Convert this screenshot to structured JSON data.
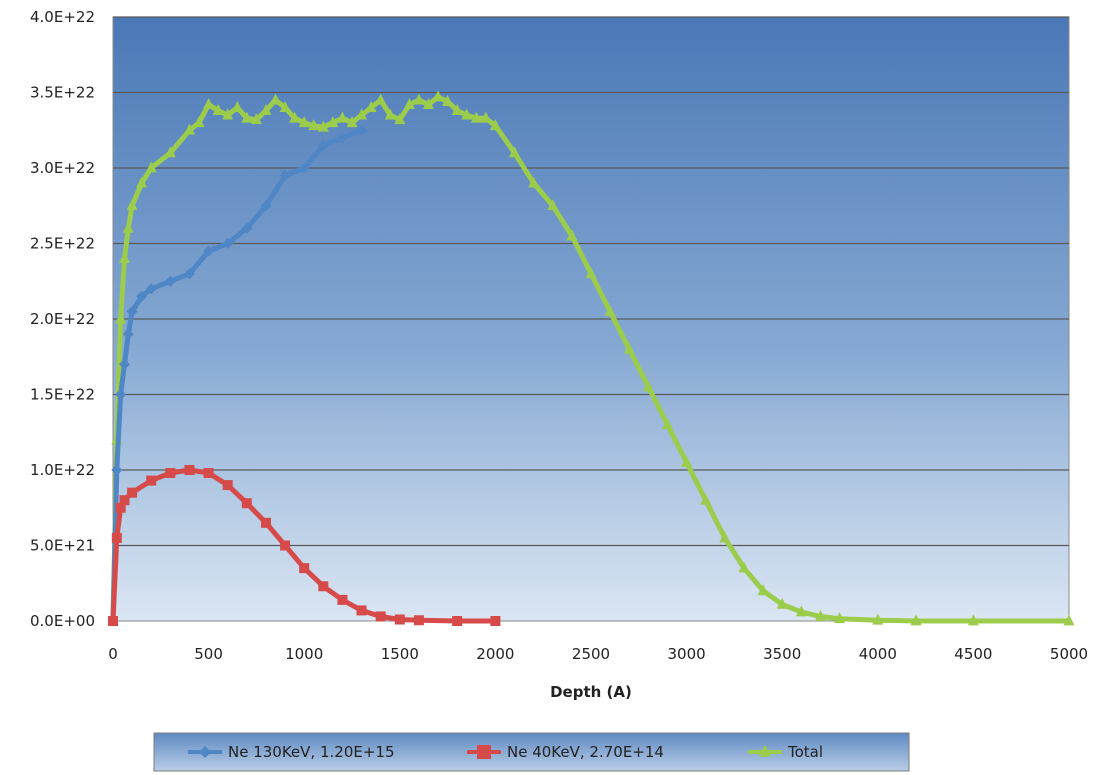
{
  "chart_data": {
    "type": "line",
    "title": "",
    "xlabel": "Depth (A)",
    "ylabel": "",
    "xlim": [
      0,
      5000
    ],
    "ylim": [
      0,
      4e+22
    ],
    "x_ticks": [
      0,
      500,
      1000,
      1500,
      2000,
      2500,
      3000,
      3500,
      4000,
      4500,
      5000
    ],
    "x_tick_labels": [
      "0",
      "500",
      "1000",
      "1500",
      "2000",
      "2500",
      "3000",
      "3500",
      "4000",
      "4500",
      "5000"
    ],
    "y_ticks": [
      0,
      5e+21,
      1e+22,
      1.5e+22,
      2e+22,
      2.5e+22,
      3e+22,
      3.5e+22,
      4e+22
    ],
    "y_tick_labels": [
      "0.0E+00",
      "5.0E+21",
      "1.0E+22",
      "1.5E+22",
      "2.0E+22",
      "2.5E+22",
      "3.0E+22",
      "3.5E+22",
      "4.0E+22"
    ],
    "grid": true,
    "legend_position": "bottom",
    "series": [
      {
        "name": "Ne 130KeV, 1.20E+15",
        "color": "#4f86c6",
        "marker": "diamond",
        "x": [
          0,
          20,
          40,
          60,
          80,
          100,
          150,
          200,
          300,
          400,
          500,
          600,
          700,
          800,
          900,
          1000,
          1100,
          1200,
          1300
        ],
        "y": [
          0,
          1e+22,
          1.5e+22,
          1.7e+22,
          1.9e+22,
          2.05e+22,
          2.15e+22,
          2.2e+22,
          2.25e+22,
          2.3e+22,
          2.45e+22,
          2.5e+22,
          2.6e+22,
          2.75e+22,
          2.95e+22,
          3e+22,
          3.15e+22,
          3.2e+22,
          3.25e+22
        ]
      },
      {
        "name": "Ne 40KeV, 2.70E+14",
        "color": "#d64a4a",
        "marker": "square",
        "x": [
          0,
          20,
          40,
          60,
          100,
          200,
          300,
          400,
          500,
          600,
          700,
          800,
          900,
          1000,
          1100,
          1200,
          1300,
          1400,
          1500,
          1600,
          1800,
          2000
        ],
        "y": [
          0,
          5.5e+21,
          7.5e+21,
          8e+21,
          8.5e+21,
          9.3e+21,
          9.8e+21,
          1e+22,
          9.8e+21,
          9e+21,
          7.8e+21,
          6.5e+21,
          5e+21,
          3.5e+21,
          2.3e+21,
          1.4e+21,
          7e+20,
          3e+20,
          1e+20,
          5e+19,
          0,
          0
        ]
      },
      {
        "name": "Total",
        "color": "#9ccc4c",
        "marker": "triangle",
        "x": [
          0,
          20,
          40,
          60,
          80,
          100,
          150,
          200,
          300,
          400,
          450,
          500,
          550,
          600,
          650,
          700,
          750,
          800,
          850,
          900,
          950,
          1000,
          1050,
          1100,
          1150,
          1200,
          1250,
          1300,
          1350,
          1400,
          1450,
          1500,
          1550,
          1600,
          1650,
          1700,
          1750,
          1800,
          1850,
          1900,
          1950,
          2000,
          2100,
          2200,
          2300,
          2400,
          2500,
          2600,
          2700,
          2800,
          2900,
          3000,
          3100,
          3200,
          3300,
          3400,
          3500,
          3600,
          3700,
          3800,
          4000,
          4200,
          4500,
          5000
        ],
        "y": [
          0,
          1.2e+22,
          2e+22,
          2.4e+22,
          2.6e+22,
          2.75e+22,
          2.9e+22,
          3e+22,
          3.1e+22,
          3.25e+22,
          3.3e+22,
          3.42e+22,
          3.38e+22,
          3.35e+22,
          3.4e+22,
          3.33e+22,
          3.32e+22,
          3.38e+22,
          3.45e+22,
          3.4e+22,
          3.33e+22,
          3.3e+22,
          3.28e+22,
          3.27e+22,
          3.3e+22,
          3.33e+22,
          3.3e+22,
          3.35e+22,
          3.4e+22,
          3.45e+22,
          3.35e+22,
          3.32e+22,
          3.42e+22,
          3.45e+22,
          3.42e+22,
          3.47e+22,
          3.44e+22,
          3.38e+22,
          3.35e+22,
          3.33e+22,
          3.33e+22,
          3.28e+22,
          3.1e+22,
          2.9e+22,
          2.75e+22,
          2.55e+22,
          2.3e+22,
          2.05e+22,
          1.8e+22,
          1.55e+22,
          1.3e+22,
          1.05e+22,
          8e+21,
          5.5e+21,
          3.5e+21,
          2e+21,
          1.1e+21,
          6e+20,
          3e+20,
          1.5e+20,
          5e+19,
          0,
          0,
          0
        ]
      }
    ]
  }
}
